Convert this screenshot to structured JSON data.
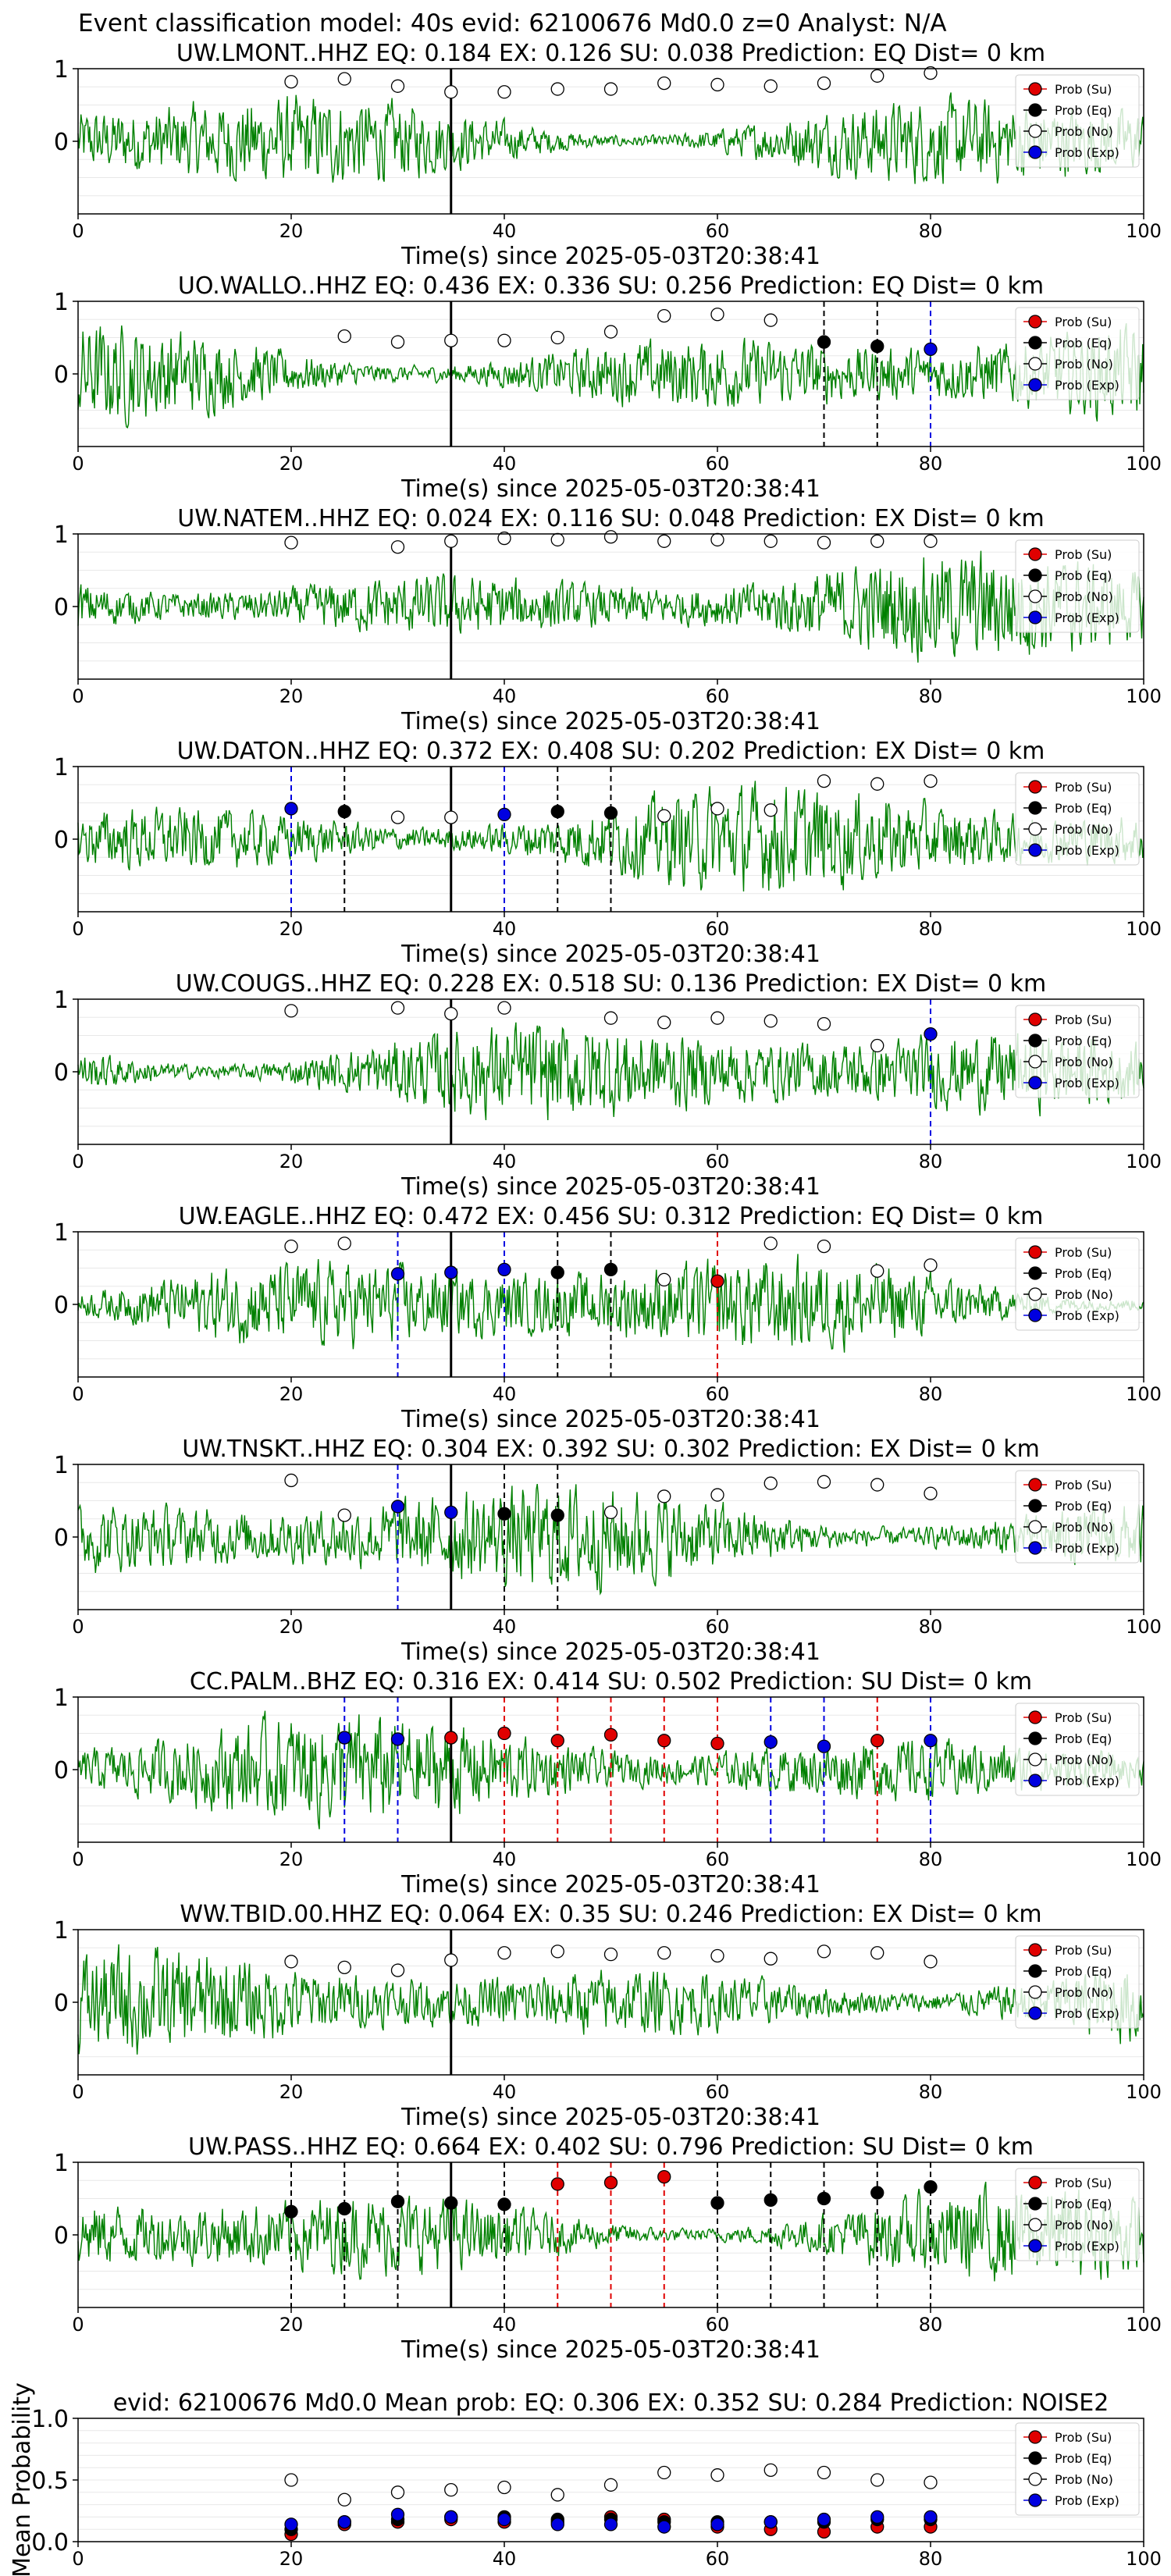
{
  "suptitle": "Event classification model: 40s evid: 62100676 Md0.0 z=0 Analyst: N/A",
  "colors": {
    "su": "#e00000",
    "eq": "#000000",
    "no": "#ffffff",
    "exp": "#0000e0",
    "waveform": "#008000",
    "pick": "#000000"
  },
  "chart_data": [
    {
      "type": "line",
      "title": "UW.LMONT..HHZ   EQ: 0.184  EX: 0.126  SU: 0.038   Prediction: EQ    Dist= 0 km",
      "xlabel": "Time(s) since 2025-05-03T20:38:41",
      "ylabel": "",
      "xlim": [
        0,
        100
      ],
      "ylim": [
        -1,
        1
      ],
      "xticks": [
        0,
        20,
        40,
        60,
        80,
        100
      ],
      "yticks": [
        0,
        1
      ],
      "grid": "y",
      "pick_time": 35,
      "legend": [
        "Prob (Su)",
        "Prob (Eq)",
        "Prob (No)",
        "Prob (Exp)"
      ],
      "legend_position": "right",
      "series": [
        {
          "name": "Prob (No)",
          "kind": "no",
          "x": [
            20,
            25,
            30,
            35,
            40,
            45,
            50,
            55,
            60,
            65,
            70,
            75,
            80
          ],
          "y": [
            0.82,
            0.86,
            0.76,
            0.68,
            0.68,
            0.72,
            0.72,
            0.8,
            0.78,
            0.76,
            0.8,
            0.9,
            0.94
          ]
        }
      ]
    },
    {
      "type": "line",
      "title": "UO.WALLO..HHZ   EQ: 0.436  EX: 0.336  SU: 0.256   Prediction: EQ    Dist= 0 km",
      "xlabel": "Time(s) since 2025-05-03T20:38:41",
      "ylabel": "",
      "xlim": [
        0,
        100
      ],
      "ylim": [
        -1,
        1
      ],
      "xticks": [
        0,
        20,
        40,
        60,
        80,
        100
      ],
      "yticks": [
        0,
        1
      ],
      "grid": "y",
      "pick_time": 35,
      "legend": [
        "Prob (Su)",
        "Prob (Eq)",
        "Prob (No)",
        "Prob (Exp)"
      ],
      "legend_position": "right",
      "series": [
        {
          "name": "Prob (No)",
          "kind": "no",
          "x": [
            25,
            30,
            35,
            40,
            45,
            50,
            55,
            60,
            65
          ],
          "y": [
            0.52,
            0.44,
            0.46,
            0.46,
            0.5,
            0.58,
            0.8,
            0.82,
            0.74
          ]
        },
        {
          "name": "Prob (Eq)",
          "kind": "eq",
          "x": [
            70,
            75
          ],
          "y": [
            0.44,
            0.38
          ]
        },
        {
          "name": "Prob (Exp)",
          "kind": "exp",
          "x": [
            80
          ],
          "y": [
            0.34
          ]
        }
      ]
    },
    {
      "type": "line",
      "title": "UW.NATEM..HHZ   EQ: 0.024  EX: 0.116  SU: 0.048   Prediction: EX    Dist= 0 km",
      "xlabel": "Time(s) since 2025-05-03T20:38:41",
      "ylabel": "",
      "xlim": [
        0,
        100
      ],
      "ylim": [
        -1,
        1
      ],
      "xticks": [
        0,
        20,
        40,
        60,
        80,
        100
      ],
      "yticks": [
        0,
        1
      ],
      "grid": "y",
      "pick_time": 35,
      "legend": [
        "Prob (Su)",
        "Prob (Eq)",
        "Prob (No)",
        "Prob (Exp)"
      ],
      "legend_position": "right",
      "series": [
        {
          "name": "Prob (No)",
          "kind": "no",
          "x": [
            20,
            30,
            35,
            40,
            45,
            50,
            55,
            60,
            65,
            70,
            75,
            80
          ],
          "y": [
            0.88,
            0.82,
            0.9,
            0.94,
            0.92,
            0.96,
            0.9,
            0.92,
            0.9,
            0.88,
            0.9,
            0.9
          ]
        }
      ]
    },
    {
      "type": "line",
      "title": "UW.DATON..HHZ   EQ: 0.372  EX: 0.408  SU: 0.202   Prediction: EX    Dist= 0 km",
      "xlabel": "Time(s) since 2025-05-03T20:38:41",
      "ylabel": "",
      "xlim": [
        0,
        100
      ],
      "ylim": [
        -1,
        1
      ],
      "xticks": [
        0,
        20,
        40,
        60,
        80,
        100
      ],
      "yticks": [
        0,
        1
      ],
      "grid": "y",
      "pick_time": 35,
      "legend": [
        "Prob (Su)",
        "Prob (Eq)",
        "Prob (No)",
        "Prob (Exp)"
      ],
      "legend_position": "right",
      "series": [
        {
          "name": "Prob (Exp)",
          "kind": "exp",
          "x": [
            20,
            40
          ],
          "y": [
            0.42,
            0.34
          ]
        },
        {
          "name": "Prob (Eq)",
          "kind": "eq",
          "x": [
            25,
            45,
            50
          ],
          "y": [
            0.38,
            0.38,
            0.36
          ]
        },
        {
          "name": "Prob (No)",
          "kind": "no",
          "x": [
            30,
            35,
            55,
            60,
            65,
            70,
            75,
            80
          ],
          "y": [
            0.3,
            0.3,
            0.32,
            0.42,
            0.4,
            0.8,
            0.76,
            0.8
          ]
        }
      ]
    },
    {
      "type": "line",
      "title": "UW.COUGS..HHZ   EQ: 0.228  EX: 0.518  SU: 0.136   Prediction: EX    Dist= 0 km",
      "xlabel": "Time(s) since 2025-05-03T20:38:41",
      "ylabel": "",
      "xlim": [
        0,
        100
      ],
      "ylim": [
        -1,
        1
      ],
      "xticks": [
        0,
        20,
        40,
        60,
        80,
        100
      ],
      "yticks": [
        0,
        1
      ],
      "grid": "y",
      "pick_time": 35,
      "legend": [
        "Prob (Su)",
        "Prob (Eq)",
        "Prob (No)",
        "Prob (Exp)"
      ],
      "legend_position": "right",
      "series": [
        {
          "name": "Prob (No)",
          "kind": "no",
          "x": [
            20,
            30,
            35,
            40,
            50,
            55,
            60,
            65,
            70,
            75
          ],
          "y": [
            0.84,
            0.88,
            0.8,
            0.88,
            0.74,
            0.68,
            0.74,
            0.7,
            0.66,
            0.36
          ]
        },
        {
          "name": "Prob (Exp)",
          "kind": "exp",
          "x": [
            80
          ],
          "y": [
            0.52
          ]
        }
      ]
    },
    {
      "type": "line",
      "title": "UW.EAGLE..HHZ   EQ: 0.472  EX: 0.456  SU: 0.312   Prediction: EQ    Dist= 0 km",
      "xlabel": "Time(s) since 2025-05-03T20:38:41",
      "ylabel": "",
      "xlim": [
        0,
        100
      ],
      "ylim": [
        -1,
        1
      ],
      "xticks": [
        0,
        20,
        40,
        60,
        80,
        100
      ],
      "yticks": [
        0,
        1
      ],
      "grid": "y",
      "pick_time": 35,
      "legend": [
        "Prob (Su)",
        "Prob (Eq)",
        "Prob (No)",
        "Prob (Exp)"
      ],
      "legend_position": "right",
      "series": [
        {
          "name": "Prob (No)",
          "kind": "no",
          "x": [
            20,
            25,
            55,
            65,
            70,
            75,
            80
          ],
          "y": [
            0.8,
            0.84,
            0.34,
            0.84,
            0.8,
            0.46,
            0.54
          ]
        },
        {
          "name": "Prob (Exp)",
          "kind": "exp",
          "x": [
            30,
            35,
            40
          ],
          "y": [
            0.42,
            0.44,
            0.48
          ]
        },
        {
          "name": "Prob (Eq)",
          "kind": "eq",
          "x": [
            45,
            50
          ],
          "y": [
            0.44,
            0.48
          ]
        },
        {
          "name": "Prob (Su)",
          "kind": "su",
          "x": [
            60
          ],
          "y": [
            0.32
          ]
        }
      ]
    },
    {
      "type": "line",
      "title": "UW.TNSKT..HHZ   EQ: 0.304  EX: 0.392  SU: 0.302   Prediction: EX    Dist= 0 km",
      "xlabel": "Time(s) since 2025-05-03T20:38:41",
      "ylabel": "",
      "xlim": [
        0,
        100
      ],
      "ylim": [
        -1,
        1
      ],
      "xticks": [
        0,
        20,
        40,
        60,
        80,
        100
      ],
      "yticks": [
        0,
        1
      ],
      "grid": "y",
      "pick_time": 35,
      "legend": [
        "Prob (Su)",
        "Prob (Eq)",
        "Prob (No)",
        "Prob (Exp)"
      ],
      "legend_position": "right",
      "series": [
        {
          "name": "Prob (No)",
          "kind": "no",
          "x": [
            20,
            25,
            50,
            55,
            60,
            65,
            70,
            75,
            80
          ],
          "y": [
            0.78,
            0.3,
            0.34,
            0.56,
            0.58,
            0.74,
            0.76,
            0.72,
            0.6
          ]
        },
        {
          "name": "Prob (Exp)",
          "kind": "exp",
          "x": [
            30,
            35
          ],
          "y": [
            0.42,
            0.34
          ]
        },
        {
          "name": "Prob (Eq)",
          "kind": "eq",
          "x": [
            40,
            45
          ],
          "y": [
            0.32,
            0.3
          ]
        }
      ]
    },
    {
      "type": "line",
      "title": "CC.PALM..BHZ   EQ: 0.316  EX: 0.414  SU: 0.502   Prediction: SU    Dist= 0 km",
      "xlabel": "Time(s) since 2025-05-03T20:38:41",
      "ylabel": "",
      "xlim": [
        0,
        100
      ],
      "ylim": [
        -1,
        1
      ],
      "xticks": [
        0,
        20,
        40,
        60,
        80,
        100
      ],
      "yticks": [
        0,
        1
      ],
      "grid": "y",
      "pick_time": 35,
      "legend": [
        "Prob (Su)",
        "Prob (Eq)",
        "Prob (No)",
        "Prob (Exp)"
      ],
      "legend_position": "right",
      "series": [
        {
          "name": "Prob (Exp)",
          "kind": "exp",
          "x": [
            25,
            30,
            65,
            70,
            80
          ],
          "y": [
            0.44,
            0.42,
            0.38,
            0.32,
            0.4
          ]
        },
        {
          "name": "Prob (Su)",
          "kind": "su",
          "x": [
            35,
            40,
            45,
            50,
            55,
            60,
            75
          ],
          "y": [
            0.44,
            0.5,
            0.4,
            0.48,
            0.4,
            0.36,
            0.4
          ]
        }
      ]
    },
    {
      "type": "line",
      "title": "WW.TBID.00.HHZ   EQ: 0.064  EX: 0.35  SU: 0.246   Prediction: EX    Dist= 0 km",
      "xlabel": "Time(s) since 2025-05-03T20:38:41",
      "ylabel": "",
      "xlim": [
        0,
        100
      ],
      "ylim": [
        -1,
        1
      ],
      "xticks": [
        0,
        20,
        40,
        60,
        80,
        100
      ],
      "yticks": [
        0,
        1
      ],
      "grid": "y",
      "pick_time": 35,
      "legend": [
        "Prob (Su)",
        "Prob (Eq)",
        "Prob (No)",
        "Prob (Exp)"
      ],
      "legend_position": "right",
      "series": [
        {
          "name": "Prob (No)",
          "kind": "no",
          "x": [
            20,
            25,
            30,
            35,
            40,
            45,
            50,
            55,
            60,
            65,
            70,
            75,
            80
          ],
          "y": [
            0.56,
            0.48,
            0.44,
            0.58,
            0.68,
            0.7,
            0.66,
            0.68,
            0.64,
            0.6,
            0.7,
            0.68,
            0.56
          ]
        }
      ]
    },
    {
      "type": "line",
      "title": "UW.PASS..HHZ   EQ: 0.664  EX: 0.402  SU: 0.796   Prediction: SU    Dist= 0 km",
      "xlabel": "Time(s) since 2025-05-03T20:38:41",
      "ylabel": "",
      "xlim": [
        0,
        100
      ],
      "ylim": [
        -1,
        1
      ],
      "xticks": [
        0,
        20,
        40,
        60,
        80,
        100
      ],
      "yticks": [
        0,
        1
      ],
      "grid": "y",
      "pick_time": 35,
      "legend": [
        "Prob (Su)",
        "Prob (Eq)",
        "Prob (No)",
        "Prob (Exp)"
      ],
      "legend_position": "right",
      "series": [
        {
          "name": "Prob (Eq)",
          "kind": "eq",
          "x": [
            20,
            25,
            30,
            35,
            40,
            60,
            65,
            70,
            75,
            80
          ],
          "y": [
            0.32,
            0.36,
            0.46,
            0.44,
            0.42,
            0.44,
            0.48,
            0.5,
            0.58,
            0.66
          ]
        },
        {
          "name": "Prob (Su)",
          "kind": "su",
          "x": [
            45,
            50,
            55
          ],
          "y": [
            0.7,
            0.72,
            0.8
          ]
        }
      ]
    },
    {
      "type": "scatter",
      "title": "evid: 62100676  Md0.0   Mean prob:   EQ: 0.306  EX: 0.352  SU: 0.284   Prediction: NOISE2",
      "xlabel": "",
      "ylabel": "Mean Probability",
      "xlim": [
        0,
        100
      ],
      "ylim": [
        0,
        1
      ],
      "xticks": [
        0,
        20,
        40,
        60,
        80,
        100
      ],
      "yticks": [
        0.0,
        0.5,
        1.0
      ],
      "grid": "y",
      "legend": [
        "Prob (Su)",
        "Prob (Eq)",
        "Prob (No)",
        "Prob (Exp)"
      ],
      "legend_position": "top-right",
      "series": [
        {
          "name": "Prob (Su)",
          "kind": "su",
          "x": [
            20,
            25,
            30,
            35,
            40,
            45,
            50,
            55,
            60,
            65,
            70,
            75,
            80
          ],
          "y": [
            0.06,
            0.14,
            0.16,
            0.18,
            0.16,
            0.16,
            0.2,
            0.18,
            0.12,
            0.1,
            0.08,
            0.12,
            0.12
          ]
        },
        {
          "name": "Prob (Eq)",
          "kind": "eq",
          "x": [
            20,
            25,
            30,
            35,
            40,
            45,
            50,
            55,
            60,
            65,
            70,
            75,
            80
          ],
          "y": [
            0.1,
            0.16,
            0.18,
            0.2,
            0.2,
            0.18,
            0.18,
            0.16,
            0.16,
            0.16,
            0.16,
            0.18,
            0.18
          ]
        },
        {
          "name": "Prob (No)",
          "kind": "no",
          "x": [
            20,
            25,
            30,
            35,
            40,
            45,
            50,
            55,
            60,
            65,
            70,
            75,
            80
          ],
          "y": [
            0.5,
            0.34,
            0.4,
            0.42,
            0.44,
            0.38,
            0.46,
            0.56,
            0.54,
            0.58,
            0.56,
            0.5,
            0.48
          ]
        },
        {
          "name": "Prob (Exp)",
          "kind": "exp",
          "x": [
            20,
            25,
            30,
            35,
            40,
            45,
            50,
            55,
            60,
            65,
            70,
            75,
            80
          ],
          "y": [
            0.14,
            0.16,
            0.22,
            0.2,
            0.18,
            0.14,
            0.14,
            0.12,
            0.14,
            0.16,
            0.18,
            0.2,
            0.2
          ]
        }
      ]
    }
  ]
}
